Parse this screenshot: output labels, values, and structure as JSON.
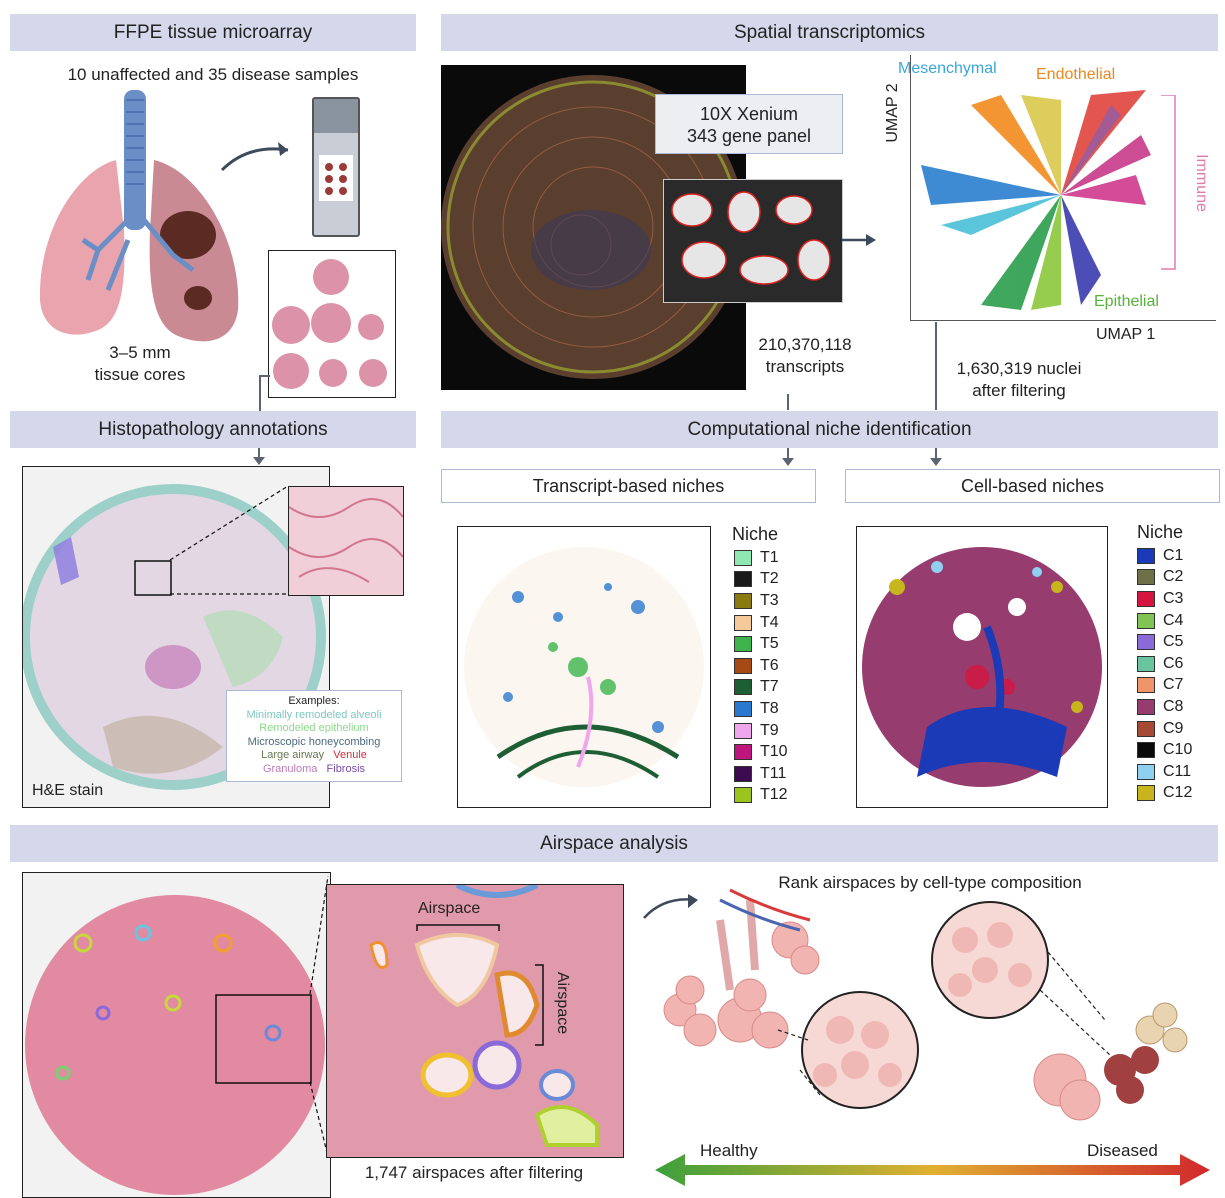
{
  "panels": {
    "ffpe": {
      "title": "FFPE tissue microarray",
      "samples": "10 unaffected and 35 disease samples",
      "cores_line1": "3–5 mm",
      "cores_line2": "tissue cores"
    },
    "spatial": {
      "title": "Spatial transcriptomics",
      "panel_line1": "10X Xenium",
      "panel_line2": "343 gene panel",
      "transcripts_count": "210,370,118",
      "transcripts_label": "transcripts",
      "nuclei_line1": "1,630,319 nuclei",
      "nuclei_line2": "after filtering"
    },
    "umap": {
      "axis_y": "UMAP 2",
      "axis_x": "UMAP 1",
      "labels": {
        "mesenchymal": "Mesenchymal",
        "endothelial": "Endothelial",
        "immune": "Immune",
        "epithelial": "Epithelial"
      }
    },
    "histo": {
      "title": "Histopathology annotations",
      "stain": "H&E stain",
      "examples_title": "Examples:",
      "examples": {
        "alveoli": "Minimally remodeled alveoli",
        "epithelium": "Remodeled epithelium",
        "honeycombing": "Microscopic honeycombing",
        "airway": "Large airway",
        "venule": "Venule",
        "granuloma": "Granuloma",
        "fibrosis": "Fibrosis"
      }
    },
    "niche": {
      "title": "Computational niche identification",
      "transcript_title": "Transcript-based niches",
      "cell_title": "Cell-based niches",
      "legend_title": "Niche"
    },
    "airspace": {
      "title": "Airspace analysis",
      "label1": "Airspace",
      "label2": "Airspace",
      "count": "1,747 airspaces after filtering",
      "rank": "Rank airspaces by cell-type composition",
      "healthy": "Healthy",
      "diseased": "Diseased"
    }
  },
  "transcript_niches": [
    {
      "label": "T1",
      "color": "#8fe8b0"
    },
    {
      "label": "T2",
      "color": "#1a1a1a"
    },
    {
      "label": "T3",
      "color": "#8a7a10"
    },
    {
      "label": "T4",
      "color": "#f6c99a"
    },
    {
      "label": "T5",
      "color": "#3cb44b"
    },
    {
      "label": "T6",
      "color": "#a54a14"
    },
    {
      "label": "T7",
      "color": "#1d5e34"
    },
    {
      "label": "T8",
      "color": "#2a78d0"
    },
    {
      "label": "T9",
      "color": "#f0a6ec"
    },
    {
      "label": "T10",
      "color": "#c0157f"
    },
    {
      "label": "T11",
      "color": "#3c0a4f"
    },
    {
      "label": "T12",
      "color": "#9bc41c"
    }
  ],
  "cell_niches": [
    {
      "label": "C1",
      "color": "#1a3ab8"
    },
    {
      "label": "C2",
      "color": "#6e7048"
    },
    {
      "label": "C3",
      "color": "#d6153f"
    },
    {
      "label": "C4",
      "color": "#7fc454"
    },
    {
      "label": "C5",
      "color": "#8a6ad8"
    },
    {
      "label": "C6",
      "color": "#6ac4a0"
    },
    {
      "label": "C7",
      "color": "#f0956a"
    },
    {
      "label": "C8",
      "color": "#963c6e"
    },
    {
      "label": "C9",
      "color": "#a54a34"
    },
    {
      "label": "C10",
      "color": "#0a0a0a"
    },
    {
      "label": "C11",
      "color": "#8fd0f0"
    },
    {
      "label": "C12",
      "color": "#c8b41c"
    }
  ]
}
